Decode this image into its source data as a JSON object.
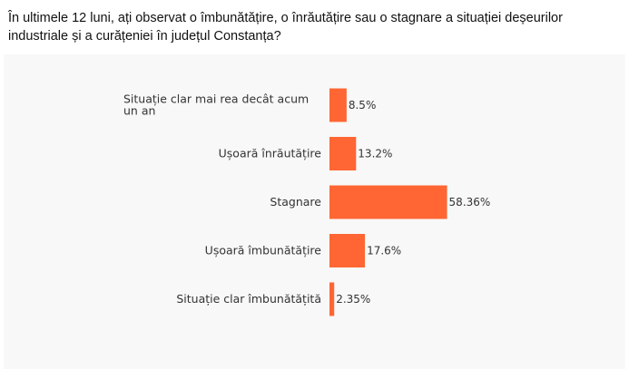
{
  "question": "În ultimele 12 luni, ați observat o îmbunătățire, o înrăutățire sau o stagnare a situației deșeurilor industriale și a curățeniei în județul Constanța?",
  "colors": {
    "bar": "#ff6633",
    "panel_background": "#f8f8f8"
  },
  "chart_data": {
    "type": "bar",
    "orientation": "horizontal",
    "title": "",
    "xlabel": "",
    "ylabel": "",
    "grid": false,
    "xlim": [
      0,
      60
    ],
    "categories": [
      [
        "Situație clar mai rea decât acum",
        "un an"
      ],
      [
        "Ușoară înrăutățire"
      ],
      [
        "Stagnare"
      ],
      [
        "Ușoară îmbunătățire"
      ],
      [
        "Situație clar îmbunătățită"
      ]
    ],
    "values": [
      8.5,
      13.2,
      58.36,
      17.6,
      2.35
    ],
    "value_labels": [
      "8.5%",
      "13.2%",
      "58.36%",
      "17.6%",
      "2.35%"
    ]
  }
}
